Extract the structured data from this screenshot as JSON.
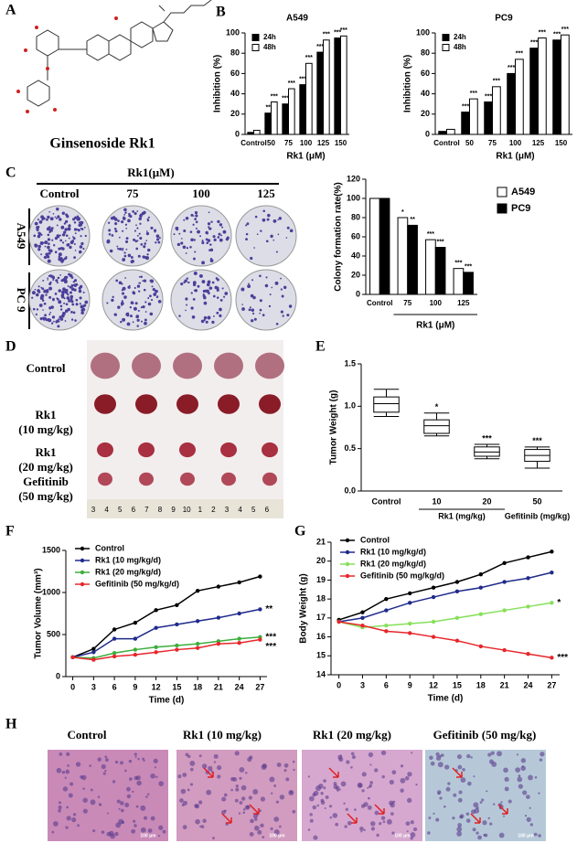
{
  "panel_labels": [
    "A",
    "B",
    "C",
    "D",
    "E",
    "F",
    "G",
    "H"
  ],
  "structure_name": "Ginsenoside Rk1",
  "colony": {
    "header": "Rk1(μM)",
    "columns": [
      "Control",
      "75",
      "100",
      "125"
    ],
    "rows": [
      "A549",
      "PC 9"
    ]
  },
  "xenograft": {
    "rows": [
      [
        "Control"
      ],
      [
        "Rk1",
        "(10 mg/kg)"
      ],
      [
        "Rk1",
        "(20 mg/kg)"
      ],
      [
        "Gefitinib",
        "(50 mg/kg)"
      ]
    ],
    "ruler": [
      "3",
      "4",
      "5",
      "6",
      "7",
      "8",
      "9",
      "10",
      "1",
      "2",
      "3",
      "4",
      "5",
      "6"
    ]
  },
  "histology": {
    "titles": [
      "Control",
      "Rk1 (10 mg/kg)",
      "Rk1 (20 mg/kg)",
      "Gefitinib (50 mg/kg)"
    ],
    "scale_bar": "100 μm"
  },
  "chart_data": [
    {
      "type": "bar",
      "title": "A549",
      "x_label": "Rk1 (μM)",
      "y_label": "Inhibition (%)",
      "categories": [
        "Control",
        "50",
        "75",
        "100",
        "125",
        "150"
      ],
      "series": [
        {
          "name": "24h",
          "color": "#000000",
          "values": [
            2,
            21,
            30,
            49,
            81,
            95
          ],
          "annotations": [
            null,
            "**",
            "***",
            "***",
            "***",
            "***"
          ]
        },
        {
          "name": "48h",
          "color": "#ffffff",
          "values": [
            4,
            32,
            45,
            70,
            93,
            97
          ],
          "annotations": [
            null,
            "***",
            "***",
            "***",
            "***",
            "***"
          ]
        }
      ],
      "ylim": [
        0,
        100
      ],
      "yticks": [
        0,
        20,
        40,
        60,
        80,
        100
      ],
      "legend": "top-left"
    },
    {
      "type": "bar",
      "title": "PC9",
      "x_label": "Rk1 (μM)",
      "y_label": "Inhibition (%)",
      "categories": [
        "Control",
        "50",
        "75",
        "100",
        "125",
        "150"
      ],
      "series": [
        {
          "name": "24h",
          "color": "#000000",
          "values": [
            3,
            22,
            32,
            60,
            85,
            93
          ],
          "annotations": [
            null,
            "***",
            "***",
            "***",
            "***",
            "***"
          ]
        },
        {
          "name": "48h",
          "color": "#ffffff",
          "values": [
            5,
            35,
            47,
            74,
            95,
            98
          ],
          "annotations": [
            null,
            "***",
            "***",
            "***",
            "***",
            "***"
          ]
        }
      ],
      "ylim": [
        0,
        100
      ],
      "yticks": [
        0,
        20,
        40,
        60,
        80,
        100
      ],
      "legend": "top-left"
    },
    {
      "type": "bar",
      "x_label": "Rk1 (μM)",
      "y_label": "Colony formation rate(%)",
      "categories": [
        "Control",
        "75",
        "100",
        "125"
      ],
      "series": [
        {
          "name": "A549",
          "color": "#ffffff",
          "values": [
            100,
            80,
            57,
            27
          ],
          "annotations": [
            null,
            "*",
            "***",
            "***"
          ]
        },
        {
          "name": "PC9",
          "color": "#000000",
          "values": [
            100,
            72,
            49,
            23
          ],
          "annotations": [
            null,
            "**",
            "***",
            "***"
          ]
        }
      ],
      "ylim": [
        0,
        120
      ],
      "yticks": [
        0,
        20,
        40,
        60,
        80,
        100,
        120
      ],
      "legend": "outside-right"
    },
    {
      "type": "box",
      "y_label": "Tumor Weight (g)",
      "categories": [
        "Control",
        "10",
        "20",
        "50"
      ],
      "group_labels": [
        "Rk1 (mg/kg)",
        "Gefitinib (mg/kg)"
      ],
      "boxes": [
        {
          "min": 0.88,
          "q1": 0.93,
          "median": 1.03,
          "q3": 1.11,
          "max": 1.2
        },
        {
          "min": 0.65,
          "q1": 0.68,
          "median": 0.77,
          "q3": 0.84,
          "max": 0.92
        },
        {
          "min": 0.38,
          "q1": 0.41,
          "median": 0.46,
          "q3": 0.52,
          "max": 0.55
        },
        {
          "min": 0.27,
          "q1": 0.35,
          "median": 0.42,
          "q3": 0.49,
          "max": 0.52
        }
      ],
      "annotations": [
        null,
        "*",
        "***",
        "***"
      ],
      "color": "#000000",
      "ylim": [
        0,
        1.5
      ],
      "yticks": [
        {
          "value": 0,
          "label": "0.0"
        },
        0.5,
        {
          "value": 1,
          "label": "1.0"
        },
        1.5
      ]
    },
    {
      "type": "line",
      "x_label": "Time (d)",
      "y_label": "Tumor Volume (mm³)",
      "x": [
        0,
        3,
        6,
        9,
        12,
        15,
        18,
        21,
        24,
        27
      ],
      "series": [
        {
          "name": "Control",
          "color": "#000000",
          "values": [
            230,
            330,
            560,
            640,
            790,
            850,
            1020,
            1070,
            1120,
            1190
          ],
          "annotation": null
        },
        {
          "name": "Rk1 (10 mg/kg/d)",
          "color": "#1f2a8c",
          "values": [
            230,
            290,
            450,
            450,
            580,
            620,
            660,
            700,
            750,
            800
          ],
          "annotation": "**"
        },
        {
          "name": "Rk1 (20 mg/kg/d)",
          "color": "#3cae3c",
          "values": [
            230,
            220,
            280,
            320,
            350,
            370,
            390,
            420,
            450,
            470
          ],
          "annotation": "***"
        },
        {
          "name": "Gefitinib (50 mg/kg/d)",
          "color": "#e8262a",
          "values": [
            230,
            200,
            240,
            260,
            290,
            320,
            340,
            390,
            400,
            440
          ],
          "annotation": "***"
        }
      ],
      "xlim": [
        -1,
        28
      ],
      "xticks": [
        0,
        3,
        6,
        9,
        12,
        15,
        18,
        21,
        24,
        27
      ],
      "ylim": [
        0,
        1500
      ],
      "yticks": [
        0,
        500,
        1000,
        1500
      ],
      "legend": "top-left"
    },
    {
      "type": "line",
      "x_label": "Time (d)",
      "y_label": "Body Weight (g)",
      "x": [
        0,
        3,
        6,
        9,
        12,
        15,
        18,
        21,
        24,
        27
      ],
      "series": [
        {
          "name": "Control",
          "color": "#000000",
          "values": [
            16.9,
            17.3,
            18.0,
            18.3,
            18.6,
            18.9,
            19.3,
            19.9,
            20.2,
            20.5
          ],
          "annotation": null
        },
        {
          "name": "Rk1 (10 mg/kg/d)",
          "color": "#1f2a8c",
          "values": [
            16.8,
            17.0,
            17.4,
            17.8,
            18.1,
            18.4,
            18.6,
            18.9,
            19.1,
            19.4
          ],
          "annotation": null
        },
        {
          "name": "Rk1 (20 mg/kg/d)",
          "color": "#86e05a",
          "values": [
            16.8,
            16.5,
            16.6,
            16.7,
            16.8,
            17.0,
            17.2,
            17.4,
            17.6,
            17.8
          ],
          "annotation": "*"
        },
        {
          "name": "Gefitinib (50 mg/kg/d)",
          "color": "#e8262a",
          "values": [
            16.8,
            16.6,
            16.3,
            16.2,
            16.0,
            15.8,
            15.5,
            15.3,
            15.1,
            14.9
          ],
          "annotation": "***"
        }
      ],
      "xlim": [
        -1,
        28
      ],
      "xticks": [
        0,
        3,
        6,
        9,
        12,
        15,
        18,
        21,
        24,
        27
      ],
      "ylim": [
        14,
        21
      ],
      "yticks": [
        14,
        15,
        16,
        17,
        18,
        19,
        20,
        21
      ],
      "legend": "top-left"
    }
  ]
}
